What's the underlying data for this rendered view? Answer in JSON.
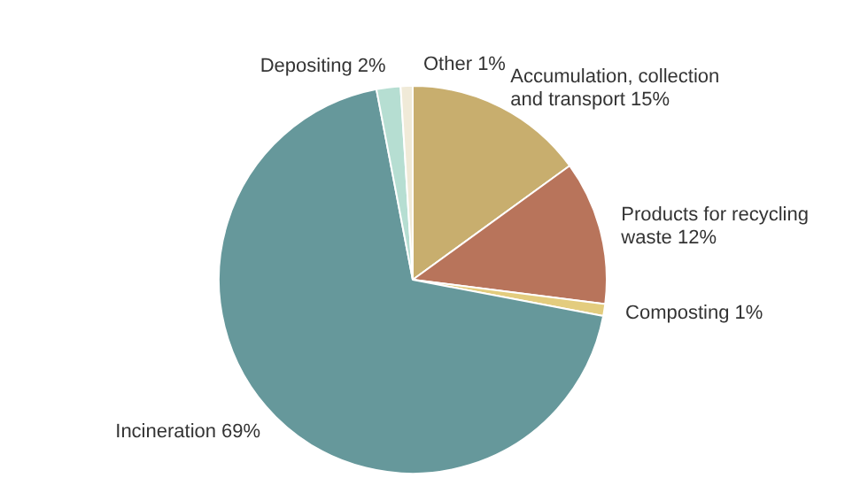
{
  "chart_data": {
    "type": "pie",
    "categories": [
      "Accumulation, collection and transport",
      "Products for recycling waste",
      "Composting",
      "Incineration",
      "Depositing",
      "Other"
    ],
    "values": [
      15,
      12,
      1,
      69,
      2,
      1
    ],
    "value_labels": [
      "15%",
      "12%",
      "1%",
      "69%",
      "2%",
      "1%"
    ],
    "colors": [
      "#c8ae6e",
      "#b8745b",
      "#e3cc7e",
      "#66989b",
      "#b6ded2",
      "#f0ead8"
    ],
    "legend": false
  }
}
